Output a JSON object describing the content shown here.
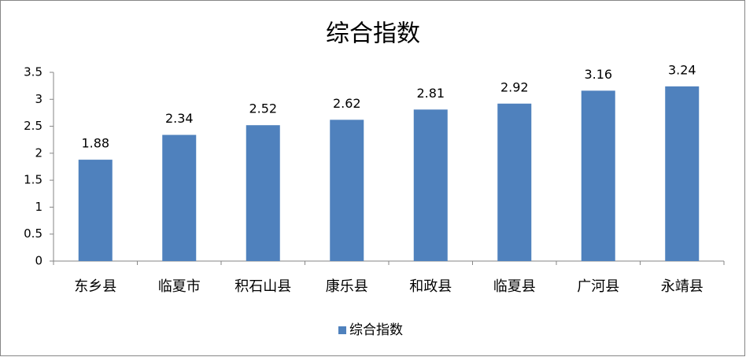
{
  "chart_data": {
    "type": "bar",
    "title": "综合指数",
    "categories": [
      "东乡县",
      "临夏市",
      "积石山县",
      "康乐县",
      "和政县",
      "临夏县",
      "广河县",
      "永靖县"
    ],
    "series": [
      {
        "name": "综合指数",
        "color": "#4f81bd",
        "values": [
          1.88,
          2.34,
          2.52,
          2.62,
          2.81,
          2.92,
          3.16,
          3.24
        ]
      }
    ],
    "ylim": [
      0,
      3.5
    ],
    "yticks": [
      0,
      0.5,
      1,
      1.5,
      2,
      2.5,
      3,
      3.5
    ],
    "grid": false,
    "legend": "bottom"
  }
}
